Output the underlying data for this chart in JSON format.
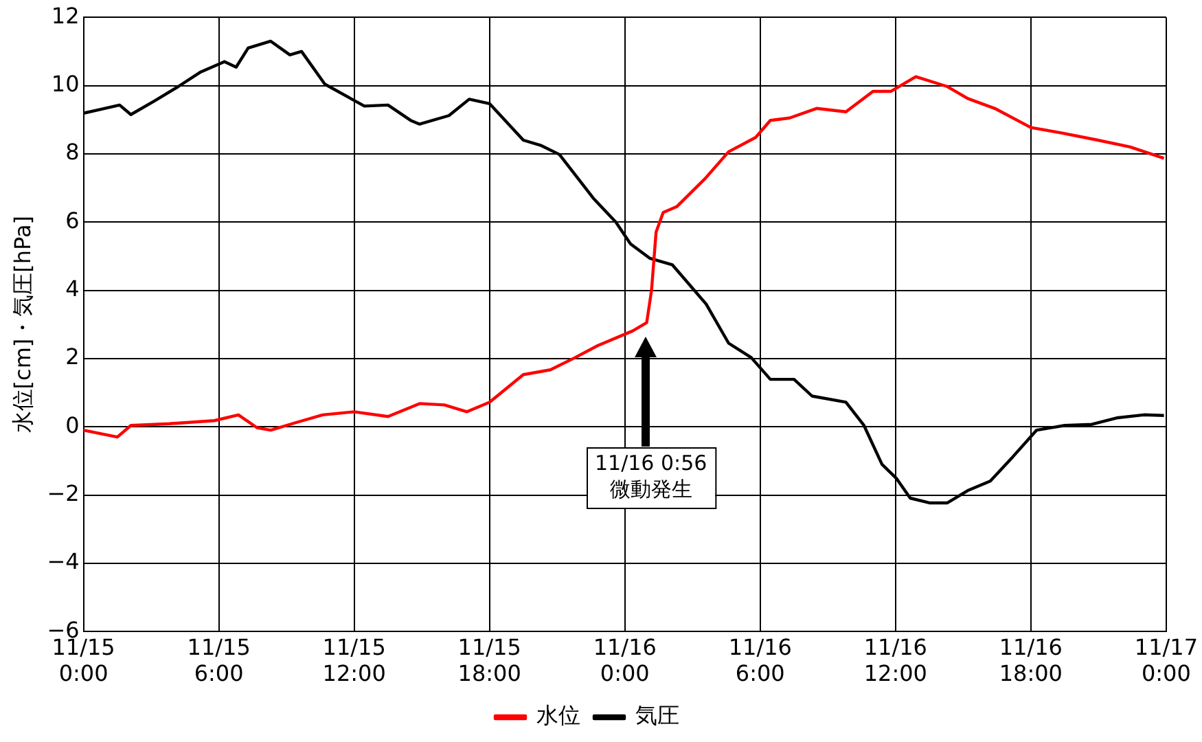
{
  "chart_data": {
    "type": "line",
    "ylabel": "水位[cm]・気圧[hPa]",
    "xlim": [
      "--11-15T00:00",
      "--11-17T00:00"
    ],
    "xticks": [
      {
        "value": "--11-15T00:00",
        "label": "11/15 0:00"
      },
      {
        "value": "--11-15T06:00",
        "label": "11/15 6:00"
      },
      {
        "value": "--11-15T12:00",
        "label": "11/15 12:00"
      },
      {
        "value": "--11-15T18:00",
        "label": "11/15 18:00"
      },
      {
        "value": "--11-16T00:00",
        "label": "11/16 0:00"
      },
      {
        "value": "--11-16T06:00",
        "label": "11/16 6:00"
      },
      {
        "value": "--11-16T12:00",
        "label": "11/16 12:00"
      },
      {
        "value": "--11-16T18:00",
        "label": "11/16 18:00"
      },
      {
        "value": "--11-17T00:00",
        "label": "11/17 0:00"
      }
    ],
    "ylim": [
      -6,
      12
    ],
    "yticks": [
      -6,
      -4,
      -2,
      0,
      2,
      4,
      6,
      8,
      10,
      12
    ],
    "grid": true,
    "legend": "bottom",
    "marker": "none",
    "line_style": "solid",
    "series": [
      {
        "name": "水位",
        "color": "#ff0000",
        "x": [
          "--11-15T00:00",
          "--11-15T01:30",
          "--11-15T02:06",
          "--11-15T03:48",
          "--11-15T05:48",
          "--11-15T06:52",
          "--11-15T07:42",
          "--11-15T08:18",
          "--11-15T09:21",
          "--11-15T10:36",
          "--11-15T12:00",
          "--11-15T13:30",
          "--11-15T14:54",
          "--11-15T16:00",
          "--11-15T17:00",
          "--11-15T18:00",
          "--11-15T19:30",
          "--11-15T20:42",
          "--11-15T21:48",
          "--11-15T22:48",
          "--11-16T00:21",
          "--11-16T00:58",
          "--11-16T01:11",
          "--11-16T01:23",
          "--11-16T01:42",
          "--11-16T02:18",
          "--11-16T03:34",
          "--11-16T04:36",
          "--11-16T05:48",
          "--11-16T06:27",
          "--11-16T07:18",
          "--11-16T08:30",
          "--11-16T09:48",
          "--11-16T11:00",
          "--11-16T11:48",
          "--11-16T12:54",
          "--11-16T14:18",
          "--11-16T15:12",
          "--11-16T16:24",
          "--11-16T18:00",
          "--11-16T19:18",
          "--11-16T20:54",
          "--11-16T22:24",
          "--11-16T23:54"
        ],
        "values": [
          -0.1,
          -0.3,
          0.04,
          0.09,
          0.18,
          0.35,
          -0.03,
          -0.1,
          0.11,
          0.35,
          0.44,
          0.3,
          0.68,
          0.64,
          0.44,
          0.72,
          1.53,
          1.67,
          2.03,
          2.38,
          2.81,
          3.05,
          4.0,
          5.7,
          6.28,
          6.45,
          7.28,
          8.06,
          8.48,
          8.98,
          9.05,
          9.33,
          9.23,
          9.83,
          9.83,
          10.26,
          9.97,
          9.62,
          9.33,
          8.77,
          8.62,
          8.41,
          8.2,
          7.87
        ]
      },
      {
        "name": "気圧",
        "color": "#000000",
        "x": [
          "--11-15T00:00",
          "--11-15T00:40",
          "--11-15T01:36",
          "--11-15T02:06",
          "--11-15T03:09",
          "--11-15T04:12",
          "--11-15T05:12",
          "--11-15T06:15",
          "--11-15T06:46",
          "--11-15T07:18",
          "--11-15T08:18",
          "--11-15T09:09",
          "--11-15T09:40",
          "--11-15T10:42",
          "--11-15T11:54",
          "--11-15T12:27",
          "--11-15T13:30",
          "--11-15T14:30",
          "--11-15T14:54",
          "--11-15T16:12",
          "--11-15T17:06",
          "--11-15T18:00",
          "--11-15T19:30",
          "--11-15T20:18",
          "--11-15T21:06",
          "--11-15T22:36",
          "--11-15T23:36",
          "--11-16T00:15",
          "--11-16T01:06",
          "--11-16T02:06",
          "--11-16T03:36",
          "--11-16T04:36",
          "--11-16T05:36",
          "--11-16T06:27",
          "--11-16T07:30",
          "--11-16T08:18",
          "--11-16T09:48",
          "--11-16T10:36",
          "--11-16T11:24",
          "--11-16T12:03",
          "--11-16T12:39",
          "--11-16T13:30",
          "--11-16T14:18",
          "--11-16T15:12",
          "--11-16T16:12",
          "--11-16T17:12",
          "--11-16T18:15",
          "--11-16T19:30",
          "--11-16T20:42",
          "--11-16T21:48",
          "--11-16T23:00",
          "--11-16T23:54"
        ],
        "values": [
          9.19,
          9.29,
          9.43,
          9.15,
          9.55,
          9.97,
          10.4,
          10.7,
          10.54,
          11.1,
          11.3,
          10.9,
          11.0,
          10.04,
          9.6,
          9.4,
          9.43,
          8.98,
          8.87,
          9.12,
          9.6,
          9.47,
          8.4,
          8.24,
          7.98,
          6.7,
          6.0,
          5.36,
          4.94,
          4.75,
          3.6,
          2.45,
          2.03,
          1.39,
          1.39,
          0.9,
          0.72,
          0.04,
          -1.1,
          -1.52,
          -2.09,
          -2.23,
          -2.23,
          -1.87,
          -1.59,
          -0.88,
          -0.1,
          0.04,
          0.07,
          0.26,
          0.35,
          0.33
        ]
      }
    ],
    "annotations": [
      "11/16 0:56\n微動発生"
    ]
  }
}
